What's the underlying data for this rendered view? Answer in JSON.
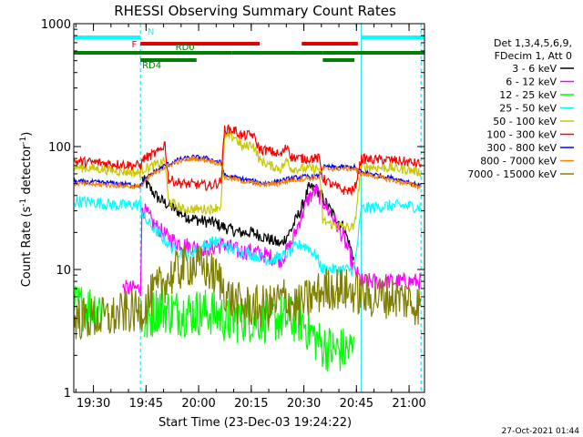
{
  "chart_data": {
    "type": "line",
    "title": "RHESSI Observing Summary Count Rates",
    "xlabel": "Start Time (23-Dec-03 19:24:22)",
    "ylabel_main": "Count Rate (s",
    "ylabel_sup1": "-1",
    "ylabel_mid": " detector",
    "ylabel_sup2": "-1",
    "ylabel_end": ")",
    "footer": "27-Oct-2021 01:44",
    "x_start_min": 0,
    "x_end_min": 100,
    "ylim": [
      1,
      1000
    ],
    "yscale": "log",
    "x_ticks": [
      {
        "min": 5.6,
        "label": "19:30"
      },
      {
        "min": 20.6,
        "label": "19:45"
      },
      {
        "min": 35.6,
        "label": "20:00"
      },
      {
        "min": 50.6,
        "label": "20:15"
      },
      {
        "min": 65.6,
        "label": "20:30"
      },
      {
        "min": 80.6,
        "label": "20:45"
      },
      {
        "min": 95.6,
        "label": "21:00"
      }
    ],
    "y_ticks": [
      {
        "value": 1,
        "label": "1"
      },
      {
        "value": 10,
        "label": "10"
      },
      {
        "value": 100,
        "label": "100"
      },
      {
        "value": 1000,
        "label": "1000"
      }
    ],
    "legend": {
      "header1": "Det 1,3,4,5,6,9,",
      "header2": "FDecim 1, Att 0",
      "items": [
        {
          "label": "3 - 6 keV",
          "color": "#000000"
        },
        {
          "label": "6 - 12 keV",
          "color": "#ff00ff"
        },
        {
          "label": "12 - 25 keV",
          "color": "#00ff00"
        },
        {
          "label": "25 - 50 keV",
          "color": "#00ffff"
        },
        {
          "label": "50 - 100 keV",
          "color": "#c8c800"
        },
        {
          "label": "100 - 300 keV",
          "color": "#ff0000"
        },
        {
          "label": "300 - 800 keV",
          "color": "#0000ff"
        },
        {
          "label": "800 - 7000 keV",
          "color": "#ff8000"
        },
        {
          "label": "7000 - 15000 keV",
          "color": "#808000"
        }
      ]
    },
    "status_bars": [
      {
        "label": "N",
        "color": "#00ffff",
        "segments": [
          [
            0,
            19
          ],
          [
            82,
            100
          ]
        ]
      },
      {
        "label": "F",
        "color": "#e00000",
        "segments": [
          [
            19,
            53
          ],
          [
            65,
            81
          ]
        ]
      },
      {
        "label": "RD0",
        "color": "#008000",
        "segments": [
          [
            0,
            45
          ],
          [
            45,
            71
          ],
          [
            71,
            100
          ]
        ]
      },
      {
        "label": "RD4",
        "color": "#008000",
        "segments": [
          [
            19,
            35
          ],
          [
            71,
            80
          ]
        ]
      }
    ],
    "vlines_dashed": [
      19,
      99
    ],
    "vlines_solid": [
      82
    ],
    "series": [
      {
        "name": "3 - 6 keV",
        "color": "#000000",
        "noise": 0.05,
        "points": [
          [
            0,
            null
          ],
          [
            19,
            null
          ],
          [
            19.5,
            55
          ],
          [
            24,
            38
          ],
          [
            28,
            32
          ],
          [
            32,
            27
          ],
          [
            36,
            25
          ],
          [
            40,
            24
          ],
          [
            43,
            22
          ],
          [
            47,
            20
          ],
          [
            51,
            20
          ],
          [
            55,
            18
          ],
          [
            59,
            16
          ],
          [
            62,
            21
          ],
          [
            65,
            32
          ],
          [
            67,
            46
          ],
          [
            69,
            46
          ],
          [
            71,
            38
          ],
          [
            74,
            28
          ],
          [
            77,
            22
          ],
          [
            80,
            12
          ],
          [
            82,
            null
          ]
        ]
      },
      {
        "name": "6 - 12 keV",
        "color": "#ff00ff",
        "noise": 0.07,
        "points": [
          [
            14,
            7
          ],
          [
            19,
            7
          ],
          [
            19.5,
            32
          ],
          [
            23,
            23
          ],
          [
            27,
            18
          ],
          [
            31,
            16
          ],
          [
            35,
            15
          ],
          [
            39,
            15
          ],
          [
            43,
            16
          ],
          [
            47,
            14
          ],
          [
            51,
            14
          ],
          [
            55,
            13
          ],
          [
            59,
            12
          ],
          [
            62,
            16
          ],
          [
            65,
            28
          ],
          [
            67,
            38
          ],
          [
            69,
            44
          ],
          [
            71,
            36
          ],
          [
            74,
            26
          ],
          [
            77,
            18
          ],
          [
            80,
            10
          ],
          [
            82,
            8
          ],
          [
            99,
            8
          ]
        ]
      },
      {
        "name": "12 - 25 keV",
        "color": "#00ff00",
        "noise": 0.2,
        "points": [
          [
            0,
            5
          ],
          [
            9,
            5
          ],
          [
            10,
            null
          ],
          [
            19,
            null
          ],
          [
            20,
            3.5
          ],
          [
            24,
            5
          ],
          [
            28,
            4.5
          ],
          [
            32,
            4.5
          ],
          [
            36,
            4.5
          ],
          [
            40,
            4.5
          ],
          [
            44,
            3.8
          ],
          [
            48,
            4
          ],
          [
            52,
            4
          ],
          [
            56,
            4
          ],
          [
            60,
            4
          ],
          [
            65,
            3.9
          ],
          [
            70,
            2.5
          ],
          [
            74,
            2.2
          ],
          [
            77,
            2.2
          ],
          [
            80,
            2.2
          ],
          [
            82,
            null
          ],
          [
            99,
            null
          ]
        ]
      },
      {
        "name": "25 - 50 keV",
        "color": "#00ffff",
        "noise": 0.05,
        "points": [
          [
            0,
            36
          ],
          [
            7,
            35
          ],
          [
            13,
            33
          ],
          [
            19,
            34
          ],
          [
            20,
            26
          ],
          [
            24,
            20
          ],
          [
            28,
            15
          ],
          [
            32,
            13
          ],
          [
            36,
            15
          ],
          [
            40,
            17
          ],
          [
            44,
            15
          ],
          [
            48,
            14
          ],
          [
            52,
            13
          ],
          [
            56,
            12
          ],
          [
            60,
            13
          ],
          [
            63,
            15
          ],
          [
            65,
            16
          ],
          [
            67,
            15
          ],
          [
            69,
            13
          ],
          [
            71,
            10
          ],
          [
            74,
            10
          ],
          [
            77,
            10
          ],
          [
            80,
            10
          ],
          [
            82,
            31
          ],
          [
            85,
            32
          ],
          [
            90,
            33
          ],
          [
            95,
            33
          ],
          [
            99,
            32
          ]
        ]
      },
      {
        "name": "50 - 100 keV",
        "color": "#c8c800",
        "noise": 0.04,
        "points": [
          [
            0,
            68
          ],
          [
            7,
            66
          ],
          [
            13,
            63
          ],
          [
            19,
            61
          ],
          [
            20,
            66
          ],
          [
            24,
            72
          ],
          [
            26,
            76
          ],
          [
            27,
            36
          ],
          [
            31,
            31
          ],
          [
            35,
            31
          ],
          [
            39,
            31
          ],
          [
            42,
            33
          ],
          [
            43,
            120
          ],
          [
            46,
            120
          ],
          [
            48,
            98
          ],
          [
            51,
            105
          ],
          [
            53,
            78
          ],
          [
            56,
            70
          ],
          [
            59,
            66
          ],
          [
            61,
            78
          ],
          [
            62,
            66
          ],
          [
            65,
            66
          ],
          [
            70,
            66
          ],
          [
            71,
            25
          ],
          [
            74,
            23
          ],
          [
            77,
            22
          ],
          [
            80,
            22
          ],
          [
            82,
            70
          ],
          [
            85,
            68
          ],
          [
            90,
            67
          ],
          [
            95,
            65
          ],
          [
            99,
            62
          ]
        ]
      },
      {
        "name": "100 - 300 keV",
        "color": "#ff0000",
        "noise": 0.04,
        "points": [
          [
            0,
            76
          ],
          [
            7,
            74
          ],
          [
            13,
            72
          ],
          [
            19,
            70
          ],
          [
            20,
            80
          ],
          [
            24,
            90
          ],
          [
            26,
            105
          ],
          [
            27,
            54
          ],
          [
            31,
            50
          ],
          [
            35,
            49
          ],
          [
            39,
            48
          ],
          [
            42,
            52
          ],
          [
            43,
            140
          ],
          [
            46,
            135
          ],
          [
            48,
            122
          ],
          [
            51,
            125
          ],
          [
            53,
            95
          ],
          [
            56,
            92
          ],
          [
            59,
            85
          ],
          [
            61,
            102
          ],
          [
            62,
            82
          ],
          [
            65,
            80
          ],
          [
            70,
            80
          ],
          [
            71,
            55
          ],
          [
            74,
            48
          ],
          [
            77,
            44
          ],
          [
            80,
            44
          ],
          [
            82,
            80
          ],
          [
            85,
            78
          ],
          [
            90,
            78
          ],
          [
            95,
            75
          ],
          [
            99,
            72
          ]
        ]
      },
      {
        "name": "300 - 800 keV",
        "color": "#0000ff",
        "noise": 0.02,
        "points": [
          [
            0,
            52
          ],
          [
            7,
            51
          ],
          [
            13,
            50
          ],
          [
            19,
            48
          ],
          [
            22,
            60
          ],
          [
            26,
            70
          ],
          [
            30,
            78
          ],
          [
            34,
            82
          ],
          [
            38,
            80
          ],
          [
            42,
            74
          ],
          [
            43,
            58
          ],
          [
            46,
            56
          ],
          [
            50,
            53
          ],
          [
            54,
            50
          ],
          [
            58,
            52
          ],
          [
            62,
            55
          ],
          [
            66,
            57
          ],
          [
            70,
            57
          ],
          [
            71,
            68
          ],
          [
            74,
            68
          ],
          [
            77,
            68
          ],
          [
            80,
            68
          ],
          [
            82,
            62
          ],
          [
            85,
            60
          ],
          [
            90,
            56
          ],
          [
            95,
            52
          ],
          [
            99,
            48
          ]
        ]
      },
      {
        "name": "800 - 7000 keV",
        "color": "#ff8000",
        "noise": 0.02,
        "points": [
          [
            0,
            50
          ],
          [
            7,
            49
          ],
          [
            13,
            48
          ],
          [
            19,
            47
          ],
          [
            22,
            58
          ],
          [
            26,
            68
          ],
          [
            30,
            76
          ],
          [
            34,
            80
          ],
          [
            38,
            78
          ],
          [
            42,
            72
          ],
          [
            43,
            56
          ],
          [
            46,
            54
          ],
          [
            50,
            51
          ],
          [
            54,
            49
          ],
          [
            58,
            50
          ],
          [
            62,
            53
          ],
          [
            66,
            55
          ],
          [
            70,
            56
          ],
          [
            71,
            66
          ],
          [
            74,
            66
          ],
          [
            77,
            66
          ],
          [
            80,
            66
          ],
          [
            82,
            60
          ],
          [
            85,
            58
          ],
          [
            90,
            54
          ],
          [
            95,
            50
          ],
          [
            99,
            47
          ]
        ]
      },
      {
        "name": "7000 - 15000 keV",
        "color": "#808000",
        "noise": 0.18,
        "points": [
          [
            0,
            4
          ],
          [
            10,
            4
          ],
          [
            15,
            4.5
          ],
          [
            19,
            4.5
          ],
          [
            22,
            6
          ],
          [
            26,
            8
          ],
          [
            30,
            10
          ],
          [
            34,
            11
          ],
          [
            38,
            10
          ],
          [
            42,
            8
          ],
          [
            44,
            6
          ],
          [
            48,
            5
          ],
          [
            52,
            5
          ],
          [
            56,
            5
          ],
          [
            60,
            6
          ],
          [
            64,
            5
          ],
          [
            68,
            6
          ],
          [
            72,
            7
          ],
          [
            76,
            7
          ],
          [
            80,
            6.5
          ],
          [
            84,
            6
          ],
          [
            88,
            6
          ],
          [
            92,
            6
          ],
          [
            96,
            5.5
          ],
          [
            99,
            5
          ]
        ]
      }
    ]
  }
}
